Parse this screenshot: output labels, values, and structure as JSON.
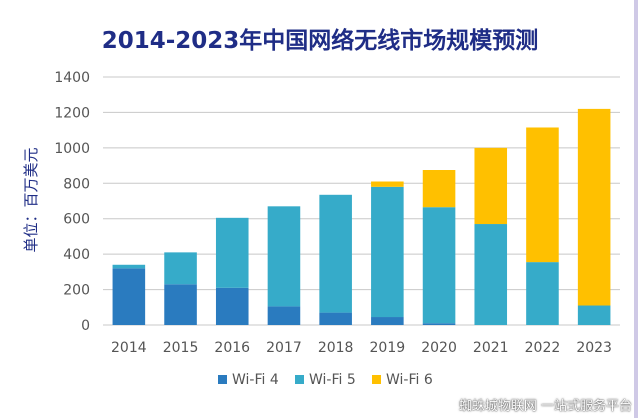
{
  "chart_data": {
    "type": "bar",
    "stacked": true,
    "title": "2014-2023年中国网络无线市场规模预测",
    "xlabel": "",
    "ylabel": "单位：百万美元",
    "ylim": [
      0,
      1400
    ],
    "yticks": [
      0,
      200,
      400,
      600,
      800,
      1000,
      1200,
      1400
    ],
    "grid": true,
    "legend_placement": "bottom",
    "categories": [
      "2014",
      "2015",
      "2016",
      "2017",
      "2018",
      "2019",
      "2020",
      "2021",
      "2022",
      "2023"
    ],
    "series": [
      {
        "name": "Wi-Fi 4",
        "color": "#2a7bbf",
        "values": [
          320,
          230,
          210,
          105,
          70,
          45,
          10,
          0,
          0,
          0
        ]
      },
      {
        "name": "Wi-Fi 5",
        "color": "#36abc9",
        "values": [
          20,
          180,
          395,
          565,
          665,
          735,
          655,
          570,
          355,
          110
        ]
      },
      {
        "name": "Wi-Fi 6",
        "color": "#ffc000",
        "values": [
          0,
          0,
          0,
          0,
          0,
          30,
          210,
          430,
          760,
          1110
        ]
      }
    ]
  },
  "watermark": "蜘蛛城物联网 一站式服务平台",
  "colors": {
    "title": "#1f2d86",
    "axis_text": "#555555",
    "grid": "#c8c8c8"
  }
}
